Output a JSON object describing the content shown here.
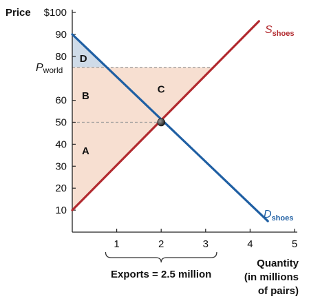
{
  "chart_data": {
    "type": "line",
    "ylabel": "Price",
    "xlabel_lines": [
      "Quantity",
      "(in millions",
      "of pairs)"
    ],
    "x_ticks": [
      1,
      2,
      3,
      4,
      5
    ],
    "y_ticks": [
      "$100",
      "90",
      "80",
      "60",
      "50",
      "40",
      "30",
      "20",
      "10"
    ],
    "y_tick_values": [
      100,
      90,
      80,
      60,
      50,
      40,
      30,
      20,
      10
    ],
    "xlim": [
      0,
      5
    ],
    "ylim": [
      0,
      100
    ],
    "world_price": 75,
    "world_price_label": "P",
    "world_price_sub": "world",
    "equilibrium": {
      "x": 2,
      "y": 50
    },
    "series": [
      {
        "name": "S",
        "sub": "shoes",
        "color": "#b22a2f",
        "points": [
          [
            0,
            10
          ],
          [
            4.2,
            96
          ]
        ]
      },
      {
        "name": "D",
        "sub": "shoes",
        "color": "#1f5fa3",
        "points": [
          [
            0,
            90
          ],
          [
            4.4,
            5
          ]
        ]
      }
    ],
    "regions": [
      {
        "label": "A",
        "x": 0.3,
        "y": 37
      },
      {
        "label": "B",
        "x": 0.3,
        "y": 62
      },
      {
        "label": "C",
        "x": 2.0,
        "y": 65
      },
      {
        "label": "D",
        "x": 0.25,
        "y": 79
      }
    ],
    "exports_brace": {
      "from": 0.75,
      "to": 3.25,
      "label": "Exports = 2.5 million"
    }
  }
}
